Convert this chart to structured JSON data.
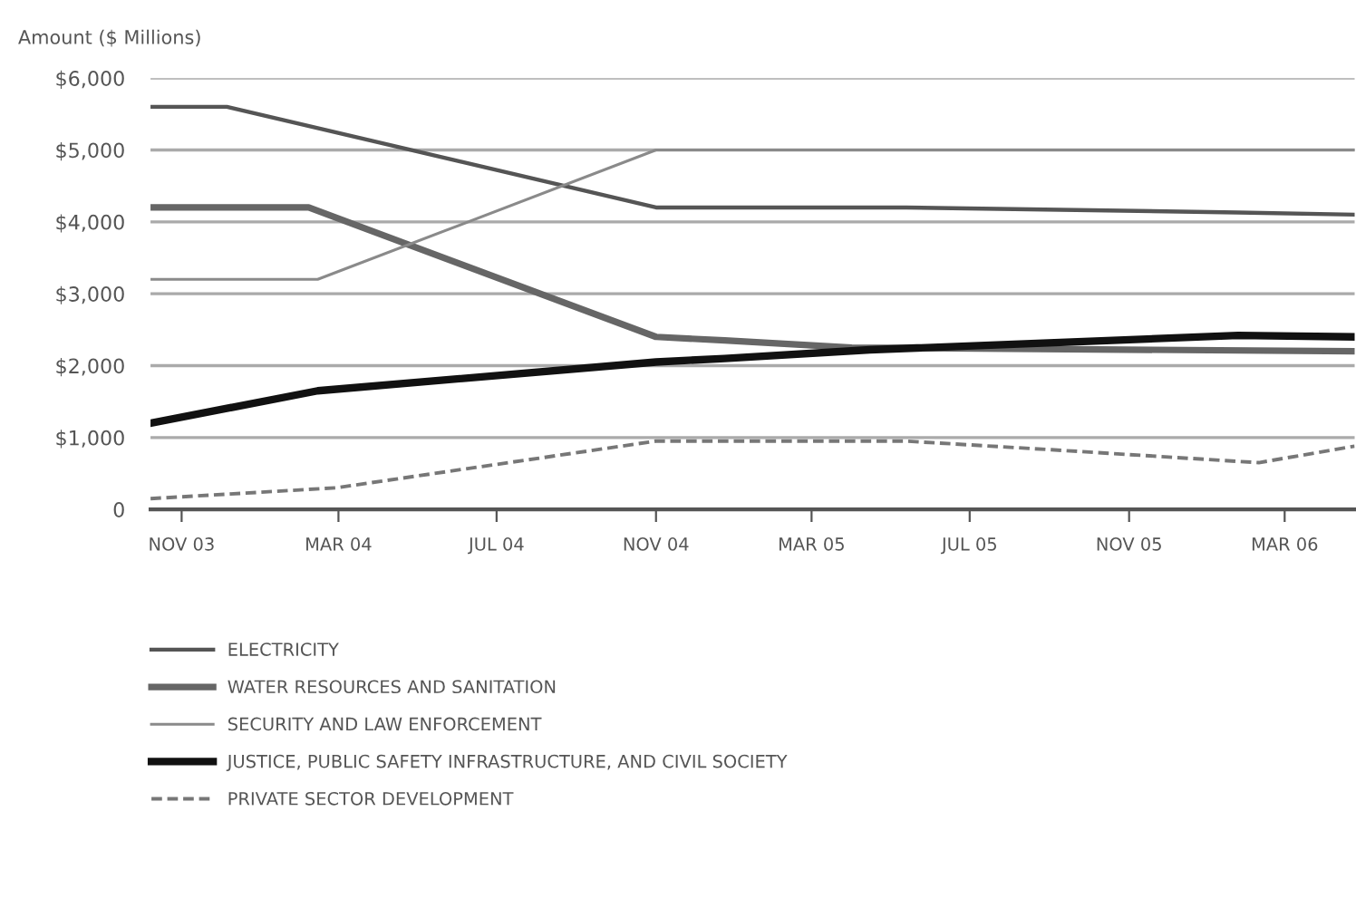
{
  "chart_data": {
    "type": "line",
    "ylabel": "Amount ($ Millions)",
    "xlim": [
      "2003-10-08",
      "2006-04-24"
    ],
    "xticks": [
      {
        "value": "2003-11-01",
        "label": "NOV 03"
      },
      {
        "value": "2004-03-01",
        "label": "MAR 04"
      },
      {
        "value": "2004-07-01",
        "label": "JUL 04"
      },
      {
        "value": "2004-11-01",
        "label": "NOV 04"
      },
      {
        "value": "2005-03-01",
        "label": "MAR 05"
      },
      {
        "value": "2005-07-01",
        "label": "JUL 05"
      },
      {
        "value": "2005-11-01",
        "label": "NOV 05"
      },
      {
        "value": "2006-03-01",
        "label": "MAR 06"
      }
    ],
    "ylim": [
      0,
      6000
    ],
    "yticks": [
      {
        "value": 0,
        "label": "0"
      },
      {
        "value": 1000,
        "label": "$1,000"
      },
      {
        "value": 2000,
        "label": "$2,000"
      },
      {
        "value": 3000,
        "label": "$3,000"
      },
      {
        "value": 4000,
        "label": "$4,000"
      },
      {
        "value": 5000,
        "label": "$5,000"
      },
      {
        "value": 6000,
        "label": "$6,000"
      }
    ],
    "grid": "y",
    "legend": "bottom",
    "marker": "none",
    "series": [
      {
        "name": "ELECTRICITY",
        "color": "#555555",
        "line_style": "solid",
        "x": [
          "2003-10-08",
          "2003-12-06",
          "2004-11-01",
          "2005-05-13",
          "2006-01-24",
          "2006-04-24"
        ],
        "values": [
          5600,
          5600,
          4200,
          4200,
          4130,
          4100
        ]
      },
      {
        "name": "WATER RESOURCES AND SANITATION",
        "color": "#666666",
        "line_style": "solid",
        "x": [
          "2003-10-08",
          "2004-02-07",
          "2004-11-01",
          "2004-12-24",
          "2005-04-01",
          "2006-04-24"
        ],
        "values": [
          4200,
          4200,
          2400,
          2350,
          2250,
          2200
        ]
      },
      {
        "name": "SECURITY AND LAW ENFORCEMENT",
        "color": "#8a8a8a",
        "line_style": "solid",
        "x": [
          "2003-10-08",
          "2004-02-14",
          "2004-11-01",
          "2006-04-24"
        ],
        "values": [
          3200,
          3200,
          5000,
          5000
        ]
      },
      {
        "name": "JUSTICE, PUBLIC SAFETY INFRASTRUCTURE, AND CIVIL SOCIETY",
        "color": "#111111",
        "line_style": "solid",
        "x": [
          "2003-10-08",
          "2004-02-14",
          "2004-11-01",
          "2004-12-24",
          "2005-04-15",
          "2006-01-24",
          "2006-04-24"
        ],
        "values": [
          1200,
          1650,
          2050,
          2100,
          2220,
          2420,
          2400
        ]
      },
      {
        "name": "PRIVATE SECTOR DEVELOPMENT",
        "color": "#777777",
        "line_style": "dashed",
        "x": [
          "2003-10-08",
          "2004-02-28",
          "2004-11-01",
          "2005-05-13",
          "2005-09-02",
          "2006-02-09",
          "2006-04-24"
        ],
        "values": [
          150,
          300,
          950,
          950,
          830,
          650,
          880
        ]
      }
    ]
  }
}
